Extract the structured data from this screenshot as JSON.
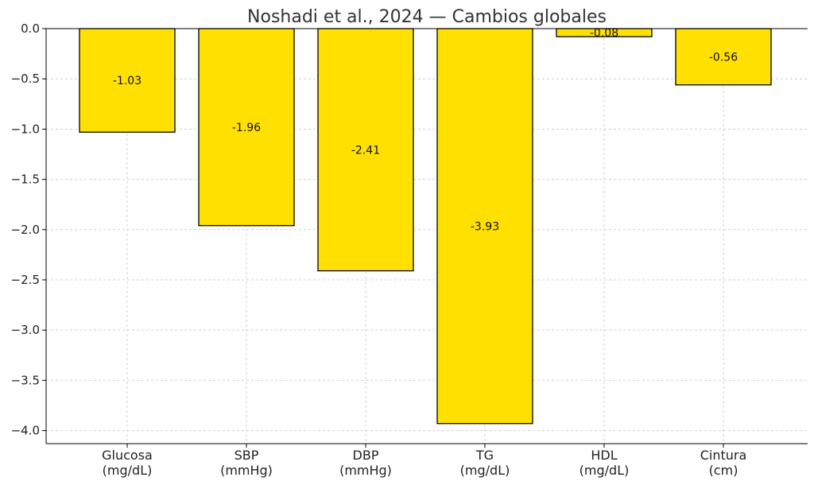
{
  "chart_data": {
    "type": "bar",
    "title": "Noshadi et al., 2024 — Cambios globales",
    "xlabel": "",
    "ylabel": "",
    "categories": [
      [
        "Glucosa",
        "(mg/dL)"
      ],
      [
        "SBP",
        "(mmHg)"
      ],
      [
        "DBP",
        "(mmHg)"
      ],
      [
        "TG",
        "(mg/dL)"
      ],
      [
        "HDL",
        "(mg/dL)"
      ],
      [
        "Cintura",
        "(cm)"
      ]
    ],
    "values": [
      -1.03,
      -1.96,
      -2.41,
      -3.93,
      -0.08,
      -0.56
    ],
    "data_labels": [
      "-1.03",
      "-1.96",
      "-2.41",
      "-3.93",
      "-0.08",
      "-0.56"
    ],
    "ylim": [
      -4.13,
      0.0
    ],
    "yticks": [
      0.0,
      -0.5,
      -1.0,
      -1.5,
      -2.0,
      -2.5,
      -3.0,
      -3.5,
      -4.0
    ],
    "ytick_labels": [
      "0.0",
      "−0.5",
      "−1.0",
      "−1.5",
      "−2.0",
      "−2.5",
      "−3.0",
      "−3.5",
      "−4.0"
    ],
    "grid": true,
    "legend": "none",
    "bar_color": "#FFE000",
    "edge_color": "#000000"
  }
}
